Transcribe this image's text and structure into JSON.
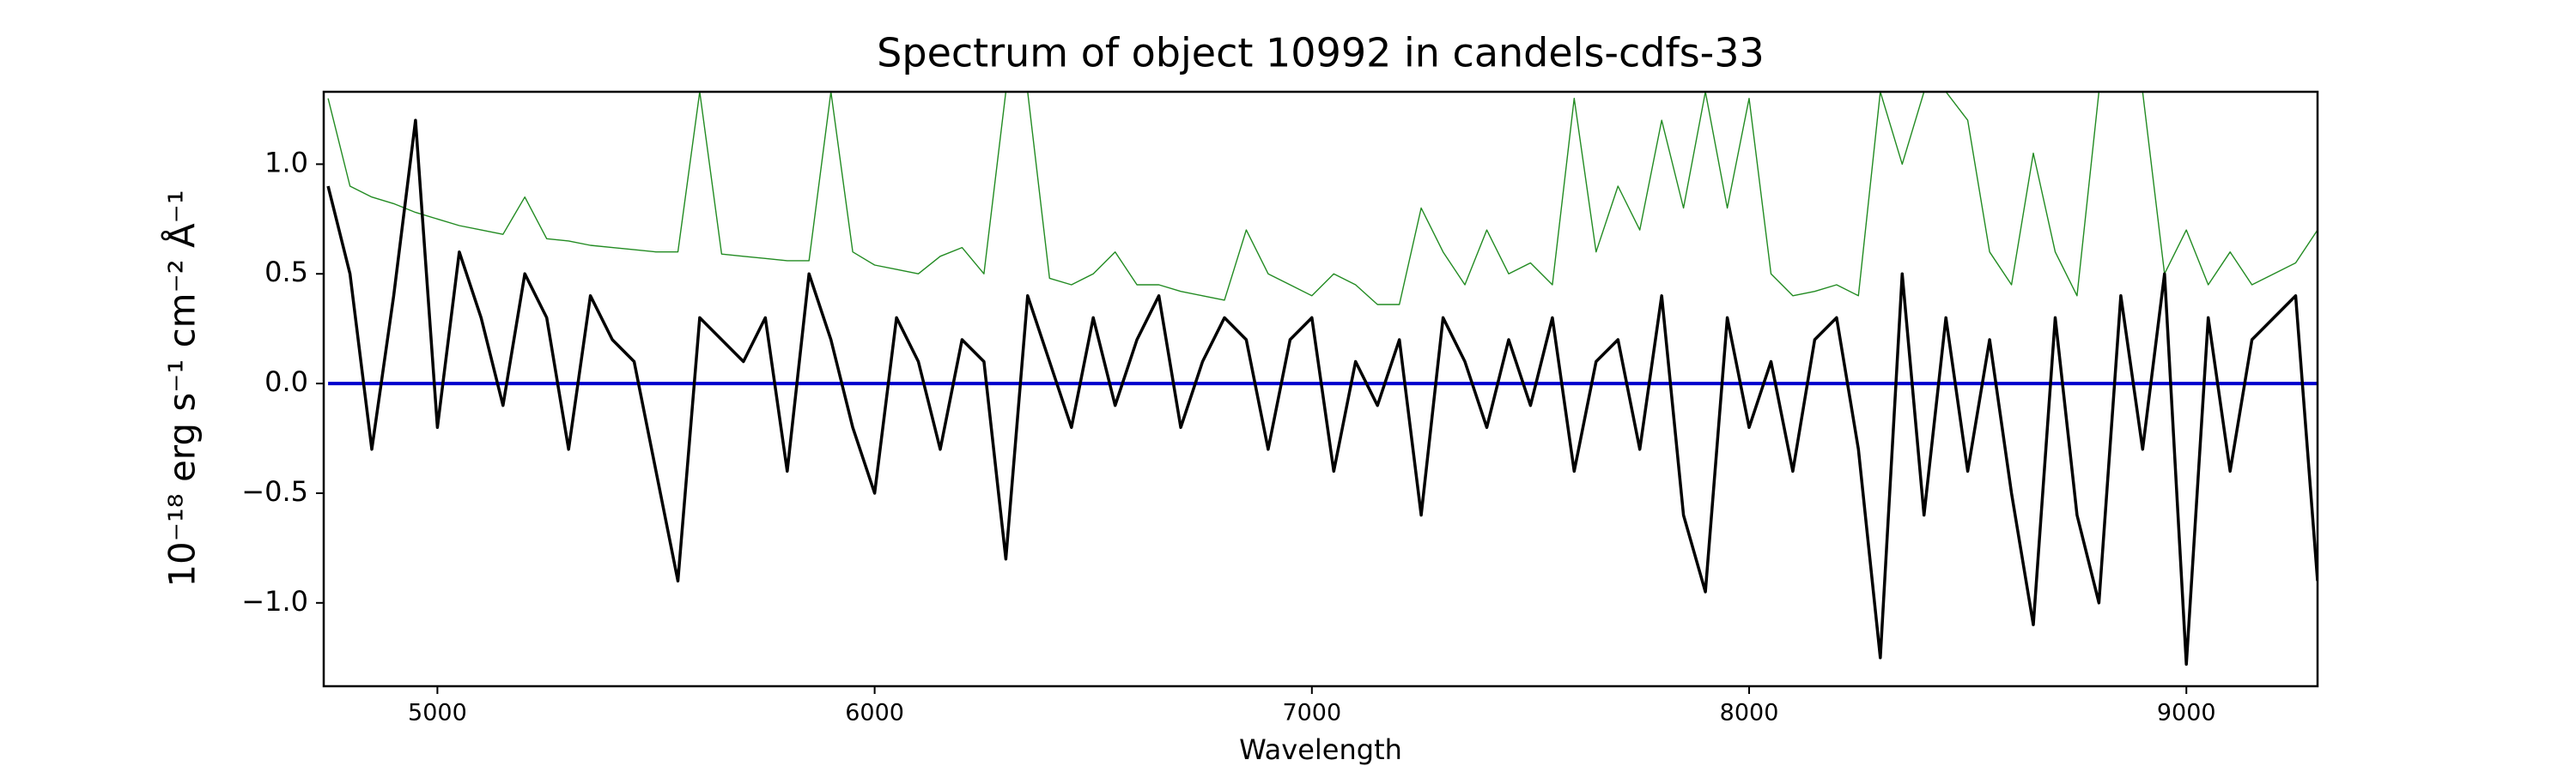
{
  "chart_data": {
    "type": "line",
    "title": "Spectrum of object 10992 in candels-cdfs-33",
    "xlabel": "Wavelength",
    "ylabel": "10⁻¹⁸ erg s⁻¹ cm⁻² Å⁻¹",
    "x": [
      4750,
      4800,
      4850,
      4900,
      4950,
      5000,
      5050,
      5100,
      5150,
      5200,
      5250,
      5300,
      5350,
      5400,
      5450,
      5500,
      5550,
      5600,
      5650,
      5700,
      5750,
      5800,
      5850,
      5900,
      5950,
      6000,
      6050,
      6100,
      6150,
      6200,
      6250,
      6300,
      6350,
      6400,
      6450,
      6500,
      6550,
      6600,
      6650,
      6700,
      6750,
      6800,
      6850,
      6900,
      6950,
      7000,
      7050,
      7100,
      7150,
      7200,
      7250,
      7300,
      7350,
      7400,
      7450,
      7500,
      7550,
      7600,
      7650,
      7700,
      7750,
      7800,
      7850,
      7900,
      7950,
      8000,
      8050,
      8100,
      8150,
      8200,
      8250,
      8300,
      8350,
      8400,
      8450,
      8500,
      8550,
      8600,
      8650,
      8700,
      8750,
      8800,
      8850,
      8900,
      8950,
      9000,
      9050,
      9100,
      9150,
      9200,
      9250,
      9300
    ],
    "series": [
      {
        "color": "#228b22",
        "width": 1.4,
        "values": [
          1.3,
          0.9,
          0.85,
          0.82,
          0.78,
          0.75,
          0.72,
          0.7,
          0.68,
          0.85,
          0.66,
          0.65,
          0.63,
          0.62,
          0.61,
          0.6,
          0.6,
          1.33,
          0.59,
          0.58,
          0.57,
          0.56,
          0.56,
          1.33,
          0.6,
          0.54,
          0.52,
          0.5,
          0.58,
          0.62,
          0.5,
          1.33,
          1.33,
          0.48,
          0.45,
          0.5,
          0.6,
          0.45,
          0.45,
          0.42,
          0.4,
          0.38,
          0.7,
          0.5,
          0.45,
          0.4,
          0.5,
          0.45,
          0.36,
          0.36,
          0.8,
          0.6,
          0.45,
          0.7,
          0.5,
          0.55,
          0.45,
          1.3,
          0.6,
          0.9,
          0.7,
          1.2,
          0.8,
          1.33,
          0.8,
          1.3,
          0.5,
          0.4,
          0.42,
          0.45,
          0.4,
          1.33,
          1.0,
          1.33,
          1.33,
          1.2,
          0.6,
          0.45,
          1.05,
          0.6,
          0.4,
          1.33,
          1.33,
          1.33,
          0.5,
          0.7,
          0.45,
          0.6,
          0.45,
          0.5,
          0.55,
          0.7
        ]
      },
      {
        "color": "#0000cd",
        "width": 4,
        "values": [
          0,
          0,
          0,
          0,
          0,
          0,
          0,
          0,
          0,
          0,
          0,
          0,
          0,
          0,
          0,
          0,
          0,
          0,
          0,
          0,
          0,
          0,
          0,
          0,
          0,
          0,
          0,
          0,
          0,
          0,
          0,
          0,
          0,
          0,
          0,
          0,
          0,
          0,
          0,
          0,
          0,
          0,
          0,
          0,
          0,
          0,
          0,
          0,
          0,
          0,
          0,
          0,
          0,
          0,
          0,
          0,
          0,
          0,
          0,
          0,
          0,
          0,
          0,
          0,
          0,
          0,
          0,
          0,
          0,
          0,
          0,
          0,
          0,
          0,
          0,
          0,
          0,
          0,
          0,
          0,
          0,
          0,
          0,
          0,
          0,
          0,
          0,
          0,
          0,
          0,
          0,
          0
        ]
      },
      {
        "color": "#000000",
        "width": 3.5,
        "values": [
          0.9,
          0.5,
          -0.3,
          0.4,
          1.2,
          -0.2,
          0.6,
          0.3,
          -0.1,
          0.5,
          0.3,
          -0.3,
          0.4,
          0.2,
          0.1,
          -0.4,
          -0.9,
          0.3,
          0.2,
          0.1,
          0.3,
          -0.4,
          0.5,
          0.2,
          -0.2,
          -0.5,
          0.3,
          0.1,
          -0.3,
          0.2,
          0.1,
          -0.8,
          0.4,
          0.1,
          -0.2,
          0.3,
          -0.1,
          0.2,
          0.4,
          -0.2,
          0.1,
          0.3,
          0.2,
          -0.3,
          0.2,
          0.3,
          -0.4,
          0.1,
          -0.1,
          0.2,
          -0.6,
          0.3,
          0.1,
          -0.2,
          0.2,
          -0.1,
          0.3,
          -0.4,
          0.1,
          0.2,
          -0.3,
          0.4,
          -0.6,
          -0.95,
          0.3,
          -0.2,
          0.1,
          -0.4,
          0.2,
          0.3,
          -0.3,
          -1.25,
          0.5,
          -0.6,
          0.3,
          -0.4,
          0.2,
          -0.5,
          -1.1,
          0.3,
          -0.6,
          -1.0,
          0.4,
          -0.3,
          0.5,
          -1.28,
          0.3,
          -0.4,
          0.2,
          0.3,
          0.4,
          -0.9
        ]
      }
    ],
    "xlim": [
      4740,
      9300
    ],
    "ylim": [
      -1.38,
      1.33
    ],
    "xticks": [
      5000,
      6000,
      7000,
      8000,
      9000
    ],
    "yticks": [
      {
        "value": -1.0,
        "label": "−1.0"
      },
      {
        "value": -0.5,
        "label": "−0.5"
      },
      {
        "value": 0.0,
        "label": "0.0"
      },
      0.5,
      {
        "value": 1.0,
        "label": "1.0"
      }
    ]
  }
}
